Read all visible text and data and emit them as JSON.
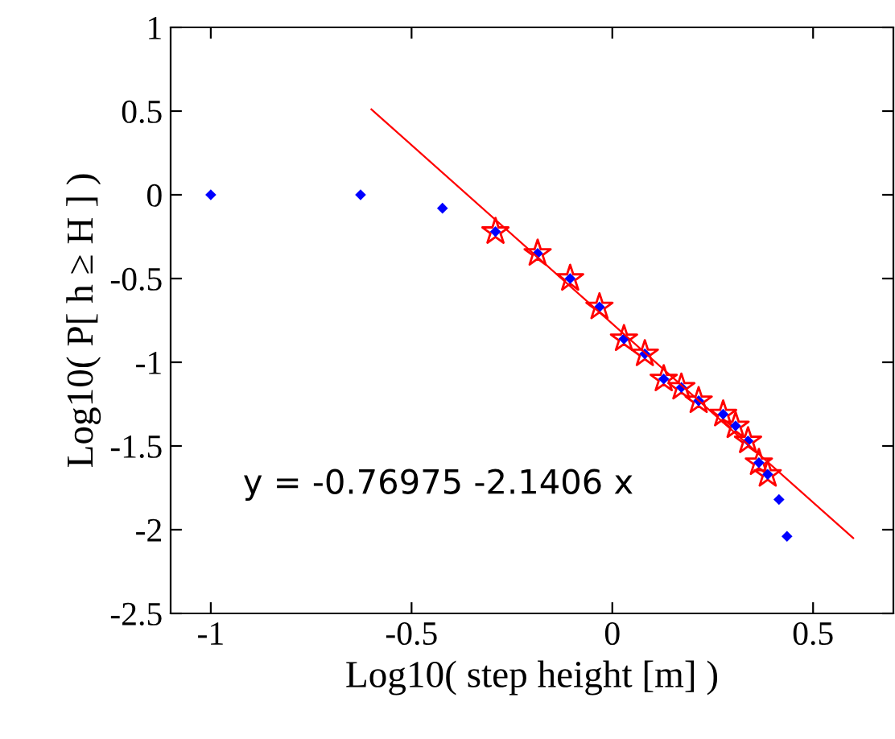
{
  "chart_data": {
    "type": "scatter",
    "xlabel": "Log10( step height [m] )",
    "ylabel": "Log10( P[ h ≥ H ] )",
    "xlim": [
      -1.1,
      0.7
    ],
    "ylim": [
      -2.5,
      1
    ],
    "xticks": [
      -1,
      -0.5,
      0,
      0.5
    ],
    "yticks": [
      -2.5,
      -2,
      -1.5,
      -1,
      -0.5,
      0,
      0.5,
      1
    ],
    "grid": false,
    "legend": false,
    "annotations": [
      "y = -0.76975 -2.1406 x"
    ],
    "series": [
      {
        "marker": "star",
        "color": "#ff0000",
        "x": [
          -0.291,
          -0.186,
          -0.105,
          -0.032,
          0.029,
          0.081,
          0.128,
          0.172,
          0.215,
          0.276,
          0.307,
          0.338,
          0.365,
          0.387
        ],
        "values": [
          -0.22,
          -0.35,
          -0.5,
          -0.67,
          -0.86,
          -0.95,
          -1.1,
          -1.15,
          -1.23,
          -1.31,
          -1.38,
          -1.47,
          -1.6,
          -1.67
        ]
      },
      {
        "marker": "diamond",
        "color": "#0000ff",
        "x": [
          -1.0,
          -0.627,
          -0.423,
          -0.291,
          -0.186,
          -0.105,
          -0.032,
          0.029,
          0.081,
          0.128,
          0.172,
          0.215,
          0.276,
          0.307,
          0.338,
          0.365,
          0.387,
          0.415,
          0.435
        ],
        "values": [
          0,
          0,
          -0.08,
          -0.22,
          -0.35,
          -0.5,
          -0.67,
          -0.86,
          -0.95,
          -1.1,
          -1.15,
          -1.23,
          -1.31,
          -1.38,
          -1.47,
          -1.6,
          -1.67,
          -1.82,
          -2.04
        ]
      },
      {
        "type": "line",
        "marker": "none",
        "line_style": "solid",
        "color": "#ff0000",
        "x": [
          -0.6,
          0.6
        ],
        "values": [
          0.51,
          -2.05
        ]
      }
    ]
  }
}
